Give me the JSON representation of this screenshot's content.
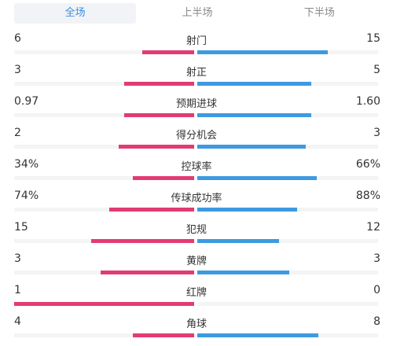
{
  "tabs": [
    "全场",
    "上半场",
    "下半场"
  ],
  "active_tab": 0,
  "colors": {
    "home": "#e23b73",
    "away": "#3d9ae0",
    "active_tab_text": "#3a8ee6"
  },
  "stats": [
    {
      "label": "射门",
      "home": "6",
      "away": "15",
      "home_fraction": 0.29,
      "away_fraction": 0.72
    },
    {
      "label": "射正",
      "home": "3",
      "away": "5",
      "home_fraction": 0.39,
      "away_fraction": 0.63
    },
    {
      "label": "预期进球",
      "home": "0.97",
      "away": "1.60",
      "home_fraction": 0.39,
      "away_fraction": 0.63
    },
    {
      "label": "得分机会",
      "home": "2",
      "away": "3",
      "home_fraction": 0.42,
      "away_fraction": 0.6
    },
    {
      "label": "控球率",
      "home": "34%",
      "away": "66%",
      "home_fraction": 0.34,
      "away_fraction": 0.66
    },
    {
      "label": "传球成功率",
      "home": "74%",
      "away": "88%",
      "home_fraction": 0.47,
      "away_fraction": 0.55
    },
    {
      "label": "犯规",
      "home": "15",
      "away": "12",
      "home_fraction": 0.57,
      "away_fraction": 0.45
    },
    {
      "label": "黄牌",
      "home": "3",
      "away": "3",
      "home_fraction": 0.52,
      "away_fraction": 0.51
    },
    {
      "label": "红牌",
      "home": "1",
      "away": "0",
      "home_fraction": 1.0,
      "away_fraction": 0.0
    },
    {
      "label": "角球",
      "home": "4",
      "away": "8",
      "home_fraction": 0.34,
      "away_fraction": 0.67
    }
  ]
}
